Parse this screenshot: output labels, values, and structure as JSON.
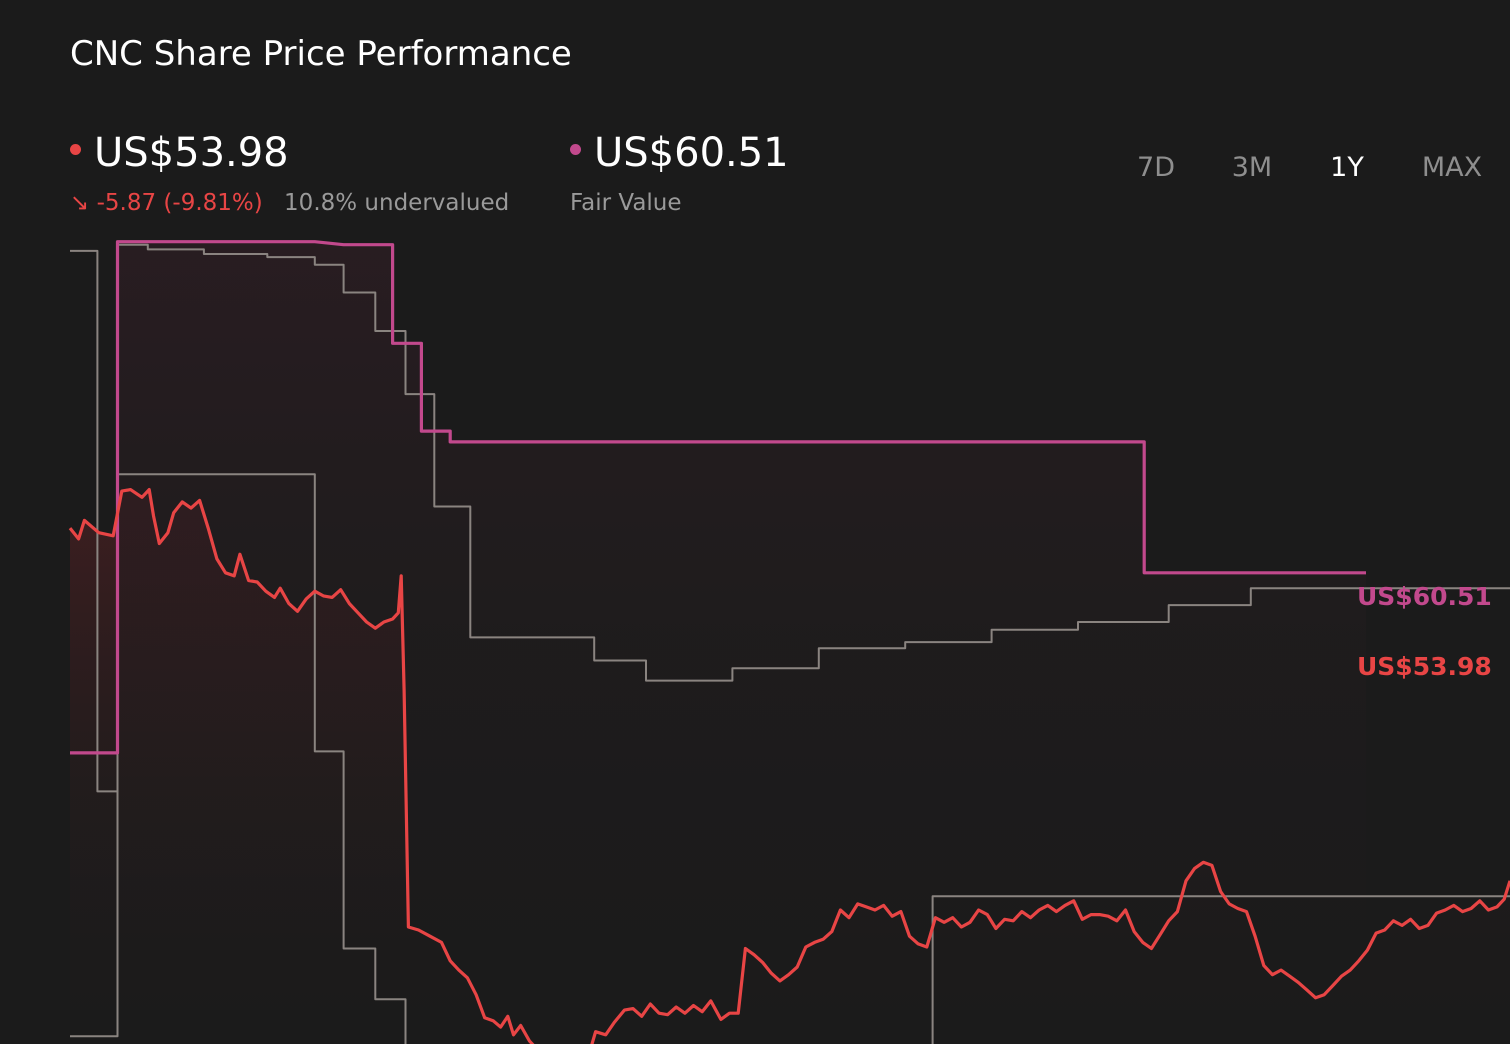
{
  "title": "CNC Share Price Performance",
  "price": {
    "value": "US$53.98",
    "change": "-5.87 (-9.81%)",
    "change_icon": "arrow-down-right-icon",
    "valuation": "10.8% undervalued",
    "color": "#e84545"
  },
  "fair_value": {
    "value": "US$60.51",
    "label": "Fair Value",
    "color": "#c2498d"
  },
  "ranges": [
    {
      "label": "7D",
      "active": false
    },
    {
      "label": "3M",
      "active": false
    },
    {
      "label": "1Y",
      "active": true
    },
    {
      "label": "MAX",
      "active": false
    }
  ],
  "chart_data": {
    "type": "line",
    "x_range": [
      0,
      100
    ],
    "ylim": [
      45,
      105
    ],
    "grid": false,
    "end_labels": {
      "fair_value": "US$60.51",
      "price": "US$53.98"
    },
    "series": [
      {
        "key": "share_price",
        "color": "#e84545",
        "step": false,
        "points": [
          [
            0,
            78.5
          ],
          [
            0.6,
            77.8
          ],
          [
            1.0,
            79.0
          ],
          [
            2.0,
            78.2
          ],
          [
            3.0,
            78.0
          ],
          [
            3.6,
            80.9
          ],
          [
            4.2,
            81.0
          ],
          [
            5.0,
            80.5
          ],
          [
            5.5,
            81.0
          ],
          [
            5.8,
            79.3
          ],
          [
            6.2,
            77.5
          ],
          [
            6.8,
            78.2
          ],
          [
            7.2,
            79.5
          ],
          [
            7.8,
            80.2
          ],
          [
            8.4,
            79.8
          ],
          [
            9.0,
            80.3
          ],
          [
            9.6,
            78.5
          ],
          [
            10.2,
            76.5
          ],
          [
            10.8,
            75.6
          ],
          [
            11.4,
            75.4
          ],
          [
            11.8,
            76.8
          ],
          [
            12.4,
            75.1
          ],
          [
            13.0,
            75.0
          ],
          [
            13.6,
            74.4
          ],
          [
            14.2,
            74.0
          ],
          [
            14.6,
            74.6
          ],
          [
            15.2,
            73.6
          ],
          [
            15.8,
            73.1
          ],
          [
            16.4,
            73.9
          ],
          [
            17.0,
            74.4
          ],
          [
            17.6,
            74.1
          ],
          [
            18.2,
            74.0
          ],
          [
            18.8,
            74.5
          ],
          [
            19.4,
            73.6
          ],
          [
            20.0,
            73.0
          ],
          [
            20.6,
            72.4
          ],
          [
            21.2,
            72.0
          ],
          [
            21.8,
            72.4
          ],
          [
            22.4,
            72.6
          ],
          [
            22.8,
            73.0
          ],
          [
            23.0,
            75.4
          ],
          [
            23.2,
            68.0
          ],
          [
            23.5,
            52.6
          ],
          [
            24.2,
            52.4
          ],
          [
            25.0,
            52.0
          ],
          [
            25.8,
            51.6
          ],
          [
            26.4,
            50.4
          ],
          [
            27.0,
            49.8
          ],
          [
            27.6,
            49.3
          ],
          [
            28.2,
            48.2
          ],
          [
            28.8,
            46.7
          ],
          [
            29.4,
            46.5
          ],
          [
            29.9,
            46.1
          ],
          [
            30.4,
            46.8
          ],
          [
            30.8,
            45.6
          ],
          [
            31.3,
            46.2
          ],
          [
            31.9,
            45.2
          ],
          [
            32.5,
            44.6
          ],
          [
            33.1,
            44.8
          ],
          [
            33.8,
            44.7
          ],
          [
            34.4,
            44.3
          ],
          [
            35.0,
            44.1
          ],
          [
            35.6,
            44.5
          ],
          [
            36.0,
            44.2
          ],
          [
            36.5,
            45.8
          ],
          [
            37.2,
            45.6
          ],
          [
            37.8,
            46.4
          ],
          [
            38.5,
            47.2
          ],
          [
            39.1,
            47.3
          ],
          [
            39.7,
            46.8
          ],
          [
            40.3,
            47.6
          ],
          [
            40.9,
            47.0
          ],
          [
            41.5,
            46.9
          ],
          [
            42.1,
            47.4
          ],
          [
            42.7,
            47.0
          ],
          [
            43.3,
            47.5
          ],
          [
            43.9,
            47.1
          ],
          [
            44.5,
            47.8
          ],
          [
            45.2,
            46.6
          ],
          [
            45.8,
            47.0
          ],
          [
            46.4,
            47.0
          ],
          [
            46.9,
            51.2
          ],
          [
            47.5,
            50.8
          ],
          [
            48.1,
            50.3
          ],
          [
            48.7,
            49.6
          ],
          [
            49.3,
            49.1
          ],
          [
            49.9,
            49.5
          ],
          [
            50.5,
            50.0
          ],
          [
            51.1,
            51.3
          ],
          [
            51.7,
            51.6
          ],
          [
            52.3,
            51.8
          ],
          [
            52.9,
            52.3
          ],
          [
            53.5,
            53.7
          ],
          [
            54.1,
            53.2
          ],
          [
            54.7,
            54.1
          ],
          [
            55.3,
            53.9
          ],
          [
            55.9,
            53.7
          ],
          [
            56.5,
            54.0
          ],
          [
            57.1,
            53.3
          ],
          [
            57.7,
            53.6
          ],
          [
            58.3,
            52.0
          ],
          [
            58.9,
            51.5
          ],
          [
            59.5,
            51.3
          ],
          [
            60.1,
            53.2
          ],
          [
            60.7,
            52.9
          ],
          [
            61.3,
            53.2
          ],
          [
            61.9,
            52.6
          ],
          [
            62.5,
            52.9
          ],
          [
            63.1,
            53.7
          ],
          [
            63.7,
            53.4
          ],
          [
            64.3,
            52.5
          ],
          [
            64.9,
            53.1
          ],
          [
            65.5,
            53.0
          ],
          [
            66.1,
            53.6
          ],
          [
            66.7,
            53.2
          ],
          [
            67.3,
            53.7
          ],
          [
            67.9,
            54.0
          ],
          [
            68.5,
            53.6
          ],
          [
            69.1,
            54.0
          ],
          [
            69.7,
            54.3
          ],
          [
            70.3,
            53.1
          ],
          [
            70.9,
            53.4
          ],
          [
            71.5,
            53.4
          ],
          [
            72.1,
            53.3
          ],
          [
            72.7,
            53.0
          ],
          [
            73.3,
            53.7
          ],
          [
            73.9,
            52.3
          ],
          [
            74.5,
            51.6
          ],
          [
            75.1,
            51.2
          ],
          [
            75.7,
            52.1
          ],
          [
            76.3,
            53.0
          ],
          [
            76.9,
            53.6
          ],
          [
            77.5,
            55.6
          ],
          [
            78.1,
            56.4
          ],
          [
            78.7,
            56.8
          ],
          [
            79.3,
            56.6
          ],
          [
            79.9,
            54.9
          ],
          [
            80.5,
            54.1
          ],
          [
            81.1,
            53.8
          ],
          [
            81.7,
            53.6
          ],
          [
            82.3,
            52.0
          ],
          [
            82.9,
            50.1
          ],
          [
            83.5,
            49.5
          ],
          [
            84.1,
            49.8
          ],
          [
            84.7,
            49.4
          ],
          [
            85.3,
            49.0
          ],
          [
            85.9,
            48.5
          ],
          [
            86.5,
            48.0
          ],
          [
            87.1,
            48.2
          ],
          [
            87.7,
            48.8
          ],
          [
            88.3,
            49.4
          ],
          [
            88.9,
            49.8
          ],
          [
            89.5,
            50.4
          ],
          [
            90.1,
            51.1
          ],
          [
            90.7,
            52.2
          ],
          [
            91.3,
            52.4
          ],
          [
            91.9,
            53.0
          ],
          [
            92.5,
            52.7
          ],
          [
            93.1,
            53.1
          ],
          [
            93.7,
            52.5
          ],
          [
            94.3,
            52.7
          ],
          [
            94.9,
            53.5
          ],
          [
            95.5,
            53.7
          ],
          [
            96.1,
            54.0
          ],
          [
            96.7,
            53.6
          ],
          [
            97.3,
            53.8
          ],
          [
            97.9,
            54.3
          ],
          [
            98.5,
            53.7
          ],
          [
            99.1,
            53.9
          ],
          [
            99.6,
            54.4
          ],
          [
            100,
            55.6
          ]
        ]
      },
      {
        "key": "fair_value",
        "color": "#c2498d",
        "step": true,
        "points": [
          [
            0,
            63.9
          ],
          [
            3.3,
            63.9
          ],
          [
            3.3,
            97.1
          ],
          [
            17.0,
            97.1
          ],
          [
            19.0,
            96.9
          ],
          [
            22.4,
            96.9
          ],
          [
            22.4,
            90.5
          ],
          [
            24.4,
            90.5
          ],
          [
            24.4,
            84.8
          ],
          [
            26.4,
            84.8
          ],
          [
            26.4,
            84.1
          ],
          [
            74.6,
            84.1
          ],
          [
            74.6,
            75.6
          ],
          [
            90.0,
            75.6
          ]
        ]
      },
      {
        "key": "lower_range",
        "color": "#8a8480",
        "step": true,
        "points": [
          [
            0,
            45.5
          ],
          [
            3.3,
            45.5
          ],
          [
            3.3,
            82.0
          ],
          [
            17.0,
            82.0
          ],
          [
            17.0,
            64.0
          ],
          [
            19.0,
            64.0
          ],
          [
            19.0,
            51.2
          ],
          [
            21.2,
            51.2
          ],
          [
            21.2,
            47.9
          ],
          [
            23.3,
            47.9
          ],
          [
            23.3,
            44.6
          ],
          [
            25.3,
            44.6
          ],
          [
            25.3,
            44.3
          ],
          [
            27.8,
            44.3
          ],
          [
            27.8,
            43.8
          ],
          [
            59.9,
            43.8
          ],
          [
            59.9,
            54.6
          ],
          [
            100,
            54.6
          ]
        ]
      },
      {
        "key": "upper_range",
        "color": "#8a8480",
        "step": true,
        "points": [
          [
            0,
            96.5
          ],
          [
            1.9,
            96.5
          ],
          [
            1.9,
            61.4
          ],
          [
            3.3,
            61.4
          ],
          [
            3.3,
            96.9
          ],
          [
            5.4,
            96.9
          ],
          [
            5.4,
            96.6
          ],
          [
            9.3,
            96.6
          ],
          [
            9.3,
            96.3
          ],
          [
            13.7,
            96.3
          ],
          [
            13.7,
            96.1
          ],
          [
            17.0,
            96.1
          ],
          [
            17.0,
            95.6
          ],
          [
            19.0,
            95.6
          ],
          [
            19.0,
            93.8
          ],
          [
            21.2,
            93.8
          ],
          [
            21.2,
            91.3
          ],
          [
            23.3,
            91.3
          ],
          [
            23.3,
            87.2
          ],
          [
            25.3,
            87.2
          ],
          [
            25.3,
            79.9
          ],
          [
            27.8,
            79.9
          ],
          [
            27.8,
            71.4
          ],
          [
            36.4,
            71.4
          ],
          [
            36.4,
            69.9
          ],
          [
            40.0,
            69.9
          ],
          [
            40.0,
            68.6
          ],
          [
            46.0,
            68.6
          ],
          [
            46.0,
            69.4
          ],
          [
            52.0,
            69.4
          ],
          [
            52.0,
            70.7
          ],
          [
            58.0,
            70.7
          ],
          [
            58.0,
            71.1
          ],
          [
            64.0,
            71.1
          ],
          [
            64.0,
            71.9
          ],
          [
            70.0,
            71.9
          ],
          [
            70.0,
            72.4
          ],
          [
            76.3,
            72.4
          ],
          [
            76.3,
            73.5
          ],
          [
            82.0,
            73.5
          ],
          [
            82.0,
            74.6
          ],
          [
            100,
            74.6
          ]
        ]
      }
    ]
  }
}
